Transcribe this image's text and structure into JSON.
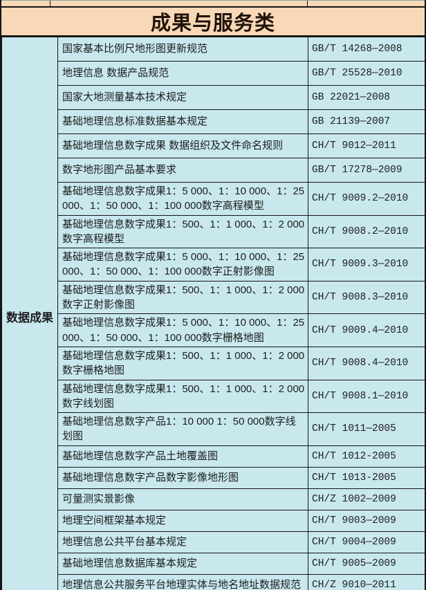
{
  "section_title": "成果与服务类",
  "category_label": "数据成果",
  "table": {
    "rows": [
      {
        "name": "国家基本比例尺地形图更新规范",
        "code": "GB/T 14268—2008"
      },
      {
        "name": "地理信息 数据产品规范",
        "code": "GB/T 25528—2010"
      },
      {
        "name": "国家大地测量基本技术规定",
        "code": "GB 22021—2008"
      },
      {
        "name": "基础地理信息标准数据基本规定",
        "code": "GB 21139—2007"
      },
      {
        "name": "基础地理信息数字成果 数据组织及文件命名规则",
        "code": "CH/T 9012—2011"
      },
      {
        "name": "数字地形图产品基本要求",
        "code": "GB/T 17278—2009"
      },
      {
        "name": "基础地理信息数字成果1：5 000、1：10 000、1：25 000、1：50 000、1：100 000数字高程模型",
        "code": "CH/T 9009.2—2010"
      },
      {
        "name": "基础地理信息数字成果1：500、1：1 000、1：2 000数字高程模型",
        "code": "CH/T 9008.2—2010"
      },
      {
        "name": "基础地理信息数字成果1：5 000、1：10 000、1：25 000、1：50 000、1：100 000数字正射影像图",
        "code": "CH/T 9009.3—2010"
      },
      {
        "name": "基础地理信息数字成果1：500、1：1 000、1：2 000数字正射影像图",
        "code": "CH/T 9008.3—2010"
      },
      {
        "name": "基础地理信息数字成果1：5 000、1：10 000、1：25 000、1：50 000、1：100 000数字栅格地图",
        "code": "CH/T 9009.4—2010"
      },
      {
        "name": "基础地理信息数字成果1：500、1：1 000、1：2 000数字栅格地图",
        "code": "CH/T 9008.4—2010"
      },
      {
        "name": "基础地理信息数字成果1：500、1：1 000、1：2 000数字线划图",
        "code": "CH/T 9008.1—2010"
      },
      {
        "name": "基础地理信息数字产品1：10 000 1：50 000数字线划图",
        "code": "CH/T 1011—2005"
      },
      {
        "name": "基础地理信息数字产品土地覆盖图",
        "code": "CH/T 1012-2005"
      },
      {
        "name": "基础地理信息数字产品数字影像地形图",
        "code": "CH/T 1013-2005"
      },
      {
        "name": "可量测实景影像",
        "code": "CH/Z 1002—2009"
      },
      {
        "name": "地理空间框架基本规定",
        "code": "CH/T 9003—2009"
      },
      {
        "name": "地理信息公共平台基本规定",
        "code": "CH/T 9004—2009"
      },
      {
        "name": "基础地理信息数据库基本规定",
        "code": "CH/T 9005—2009"
      },
      {
        "name": "地理信息公共服务平台地理实体与地名地址数据规范",
        "code": "CH/Z 9010—2011"
      }
    ],
    "colors": {
      "header_background": "#f8d8b6",
      "body_background": "#c8e8ee",
      "border": "#141414",
      "text": "#1d1d1d"
    }
  }
}
